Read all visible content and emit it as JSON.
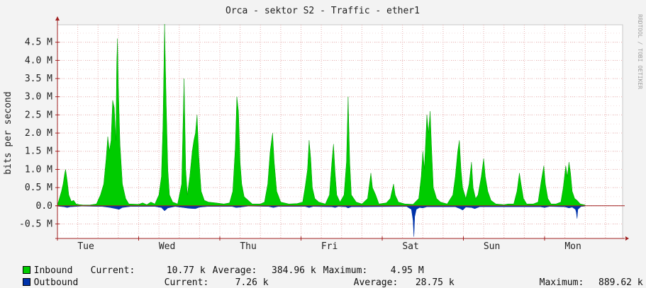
{
  "title": "Orca - sektor S2 - Traffic - ether1",
  "watermark": "RRDTOOL / TOBI OETIKER",
  "colors": {
    "inbound": "#00cc00",
    "outbound": "#0033aa",
    "grid": "#e8b0b0",
    "axis": "#a02020",
    "background": "#ffffff"
  },
  "chart_data": {
    "type": "area",
    "ylabel": "bits per second",
    "ylim": [
      -0.9,
      4.98
    ],
    "y_ticks": [
      {
        "value": -0.5,
        "label": "-0.5 M"
      },
      {
        "value": 0.0,
        "label": "0.0"
      },
      {
        "value": 0.5,
        "label": "0.5 M"
      },
      {
        "value": 1.0,
        "label": "1.0 M"
      },
      {
        "value": 1.5,
        "label": "1.5 M"
      },
      {
        "value": 2.0,
        "label": "2.0 M"
      },
      {
        "value": 2.5,
        "label": "2.5 M"
      },
      {
        "value": 3.0,
        "label": "3.0 M"
      },
      {
        "value": 3.5,
        "label": "3.5 M"
      },
      {
        "value": 4.0,
        "label": "4.0 M"
      },
      {
        "value": 4.5,
        "label": "4.5 M"
      }
    ],
    "x_day_labels": [
      "Tue",
      "Wed",
      "Thu",
      "Fri",
      "Sat",
      "Sun",
      "Mon"
    ],
    "xlim_days": [
      0,
      7.0
    ],
    "grid": true,
    "series": [
      {
        "name": "Inbound",
        "points": [
          [
            0.0,
            0.02
          ],
          [
            0.05,
            0.4
          ],
          [
            0.07,
            0.6
          ],
          [
            0.09,
            0.9
          ],
          [
            0.1,
            1.0
          ],
          [
            0.12,
            0.7
          ],
          [
            0.14,
            0.3
          ],
          [
            0.17,
            0.12
          ],
          [
            0.2,
            0.15
          ],
          [
            0.23,
            0.05
          ],
          [
            0.27,
            0.03
          ],
          [
            0.32,
            0.02
          ],
          [
            0.4,
            0.02
          ],
          [
            0.48,
            0.05
          ],
          [
            0.53,
            0.3
          ],
          [
            0.57,
            0.6
          ],
          [
            0.6,
            1.3
          ],
          [
            0.62,
            1.9
          ],
          [
            0.64,
            1.5
          ],
          [
            0.66,
            1.8
          ],
          [
            0.68,
            2.9
          ],
          [
            0.7,
            2.7
          ],
          [
            0.72,
            1.8
          ],
          [
            0.73,
            3.9
          ],
          [
            0.74,
            4.6
          ],
          [
            0.75,
            3.3
          ],
          [
            0.77,
            1.7
          ],
          [
            0.8,
            0.6
          ],
          [
            0.84,
            0.2
          ],
          [
            0.88,
            0.05
          ],
          [
            1.0,
            0.04
          ],
          [
            1.05,
            0.08
          ],
          [
            1.1,
            0.03
          ],
          [
            1.15,
            0.1
          ],
          [
            1.2,
            0.05
          ],
          [
            1.25,
            0.3
          ],
          [
            1.28,
            0.8
          ],
          [
            1.3,
            2.2
          ],
          [
            1.32,
            5.0
          ],
          [
            1.34,
            2.8
          ],
          [
            1.36,
            1.0
          ],
          [
            1.38,
            0.3
          ],
          [
            1.42,
            0.1
          ],
          [
            1.48,
            0.05
          ],
          [
            1.53,
            0.6
          ],
          [
            1.56,
            3.5
          ],
          [
            1.58,
            1.0
          ],
          [
            1.6,
            0.3
          ],
          [
            1.63,
            0.8
          ],
          [
            1.66,
            1.5
          ],
          [
            1.68,
            1.8
          ],
          [
            1.7,
            2.0
          ],
          [
            1.72,
            2.5
          ],
          [
            1.74,
            1.4
          ],
          [
            1.77,
            0.4
          ],
          [
            1.81,
            0.15
          ],
          [
            1.86,
            0.1
          ],
          [
            1.95,
            0.08
          ],
          [
            2.05,
            0.05
          ],
          [
            2.12,
            0.08
          ],
          [
            2.16,
            0.4
          ],
          [
            2.19,
            1.6
          ],
          [
            2.21,
            3.0
          ],
          [
            2.23,
            2.6
          ],
          [
            2.25,
            1.2
          ],
          [
            2.27,
            0.6
          ],
          [
            2.3,
            0.25
          ],
          [
            2.35,
            0.15
          ],
          [
            2.4,
            0.05
          ],
          [
            2.5,
            0.05
          ],
          [
            2.55,
            0.1
          ],
          [
            2.59,
            0.6
          ],
          [
            2.62,
            1.5
          ],
          [
            2.65,
            2.0
          ],
          [
            2.67,
            1.2
          ],
          [
            2.7,
            0.4
          ],
          [
            2.75,
            0.1
          ],
          [
            2.85,
            0.05
          ],
          [
            2.95,
            0.06
          ],
          [
            3.02,
            0.1
          ],
          [
            3.05,
            0.5
          ],
          [
            3.08,
            1.0
          ],
          [
            3.1,
            1.8
          ],
          [
            3.12,
            1.3
          ],
          [
            3.14,
            0.5
          ],
          [
            3.17,
            0.2
          ],
          [
            3.22,
            0.1
          ],
          [
            3.3,
            0.05
          ],
          [
            3.35,
            0.3
          ],
          [
            3.38,
            1.2
          ],
          [
            3.4,
            1.7
          ],
          [
            3.42,
            0.9
          ],
          [
            3.44,
            0.3
          ],
          [
            3.48,
            0.1
          ],
          [
            3.53,
            0.3
          ],
          [
            3.56,
            1.2
          ],
          [
            3.58,
            3.0
          ],
          [
            3.6,
            1.2
          ],
          [
            3.62,
            0.3
          ],
          [
            3.68,
            0.1
          ],
          [
            3.75,
            0.05
          ],
          [
            3.82,
            0.2
          ],
          [
            3.86,
            0.9
          ],
          [
            3.88,
            0.5
          ],
          [
            3.92,
            0.3
          ],
          [
            3.96,
            0.05
          ],
          [
            4.05,
            0.08
          ],
          [
            4.1,
            0.2
          ],
          [
            4.14,
            0.6
          ],
          [
            4.16,
            0.3
          ],
          [
            4.2,
            0.1
          ],
          [
            4.28,
            0.05
          ],
          [
            4.38,
            0.04
          ],
          [
            4.45,
            0.2
          ],
          [
            4.48,
            0.8
          ],
          [
            4.5,
            1.5
          ],
          [
            4.52,
            1.0
          ],
          [
            4.55,
            2.5
          ],
          [
            4.57,
            2.0
          ],
          [
            4.59,
            2.6
          ],
          [
            4.61,
            1.5
          ],
          [
            4.63,
            0.5
          ],
          [
            4.67,
            0.2
          ],
          [
            4.72,
            0.1
          ],
          [
            4.8,
            0.05
          ],
          [
            4.87,
            0.3
          ],
          [
            4.9,
            0.8
          ],
          [
            4.93,
            1.5
          ],
          [
            4.95,
            1.8
          ],
          [
            4.97,
            1.0
          ],
          [
            4.99,
            0.5
          ],
          [
            5.03,
            0.2
          ],
          [
            5.07,
            0.6
          ],
          [
            5.1,
            1.2
          ],
          [
            5.12,
            0.5
          ],
          [
            5.15,
            0.2
          ],
          [
            5.18,
            0.3
          ],
          [
            5.22,
            0.8
          ],
          [
            5.25,
            1.3
          ],
          [
            5.27,
            0.8
          ],
          [
            5.3,
            0.4
          ],
          [
            5.34,
            0.15
          ],
          [
            5.4,
            0.05
          ],
          [
            5.5,
            0.03
          ],
          [
            5.55,
            0.05
          ],
          [
            5.62,
            0.05
          ],
          [
            5.66,
            0.4
          ],
          [
            5.69,
            0.9
          ],
          [
            5.71,
            0.6
          ],
          [
            5.74,
            0.2
          ],
          [
            5.78,
            0.05
          ],
          [
            5.86,
            0.05
          ],
          [
            5.92,
            0.1
          ],
          [
            5.96,
            0.7
          ],
          [
            5.99,
            1.1
          ],
          [
            6.01,
            0.6
          ],
          [
            6.04,
            0.2
          ],
          [
            6.08,
            0.05
          ],
          [
            6.14,
            0.05
          ],
          [
            6.2,
            0.1
          ],
          [
            6.23,
            0.5
          ],
          [
            6.26,
            1.1
          ],
          [
            6.28,
            0.8
          ],
          [
            6.3,
            1.2
          ],
          [
            6.32,
            0.9
          ],
          [
            6.34,
            0.4
          ],
          [
            6.37,
            0.2
          ],
          [
            6.4,
            0.15
          ],
          [
            6.44,
            0.05
          ],
          [
            6.5,
            0.02
          ]
        ]
      },
      {
        "name": "Outbound",
        "points": [
          [
            0.0,
            -0.01
          ],
          [
            0.08,
            -0.03
          ],
          [
            0.12,
            -0.05
          ],
          [
            0.16,
            -0.03
          ],
          [
            0.3,
            -0.01
          ],
          [
            0.55,
            -0.02
          ],
          [
            0.65,
            -0.05
          ],
          [
            0.72,
            -0.08
          ],
          [
            0.76,
            -0.1
          ],
          [
            0.8,
            -0.05
          ],
          [
            0.9,
            -0.02
          ],
          [
            1.2,
            -0.02
          ],
          [
            1.28,
            -0.05
          ],
          [
            1.32,
            -0.14
          ],
          [
            1.36,
            -0.06
          ],
          [
            1.45,
            -0.02
          ],
          [
            1.55,
            -0.05
          ],
          [
            1.62,
            -0.07
          ],
          [
            1.7,
            -0.08
          ],
          [
            1.75,
            -0.04
          ],
          [
            1.85,
            -0.02
          ],
          [
            2.15,
            -0.02
          ],
          [
            2.2,
            -0.05
          ],
          [
            2.25,
            -0.04
          ],
          [
            2.35,
            -0.01
          ],
          [
            2.6,
            -0.02
          ],
          [
            2.66,
            -0.05
          ],
          [
            2.72,
            -0.02
          ],
          [
            3.05,
            -0.02
          ],
          [
            3.1,
            -0.05
          ],
          [
            3.15,
            -0.02
          ],
          [
            3.38,
            -0.03
          ],
          [
            3.42,
            -0.05
          ],
          [
            3.46,
            -0.02
          ],
          [
            3.55,
            -0.03
          ],
          [
            3.58,
            -0.06
          ],
          [
            3.62,
            -0.03
          ],
          [
            4.3,
            -0.02
          ],
          [
            4.36,
            -0.1
          ],
          [
            4.38,
            -0.4
          ],
          [
            4.39,
            -0.85
          ],
          [
            4.4,
            -0.3
          ],
          [
            4.42,
            -0.1
          ],
          [
            4.46,
            -0.05
          ],
          [
            4.5,
            -0.06
          ],
          [
            4.55,
            -0.03
          ],
          [
            4.9,
            -0.03
          ],
          [
            4.96,
            -0.08
          ],
          [
            4.99,
            -0.12
          ],
          [
            5.03,
            -0.04
          ],
          [
            5.1,
            -0.05
          ],
          [
            5.14,
            -0.08
          ],
          [
            5.2,
            -0.03
          ],
          [
            5.95,
            -0.03
          ],
          [
            6.0,
            -0.05
          ],
          [
            6.06,
            -0.02
          ],
          [
            6.25,
            -0.03
          ],
          [
            6.3,
            -0.06
          ],
          [
            6.34,
            -0.04
          ],
          [
            6.38,
            -0.1
          ],
          [
            6.39,
            -0.18
          ],
          [
            6.4,
            -0.35
          ],
          [
            6.41,
            -0.1
          ],
          [
            6.45,
            -0.02
          ],
          [
            6.5,
            -0.01
          ]
        ]
      }
    ]
  },
  "legend": {
    "inbound": {
      "name": "Inbound",
      "current_label": "Current:",
      "current": "10.77 k",
      "average_label": "Average:",
      "average": "384.96 k",
      "maximum_label": "Maximum:",
      "maximum": "4.95 M"
    },
    "outbound": {
      "name": "Outbound",
      "current_label": "Current:",
      "current": "7.26 k",
      "average_label": "Average:",
      "average": "28.75 k",
      "maximum_label": "Maximum:",
      "maximum": "889.62 k"
    }
  }
}
